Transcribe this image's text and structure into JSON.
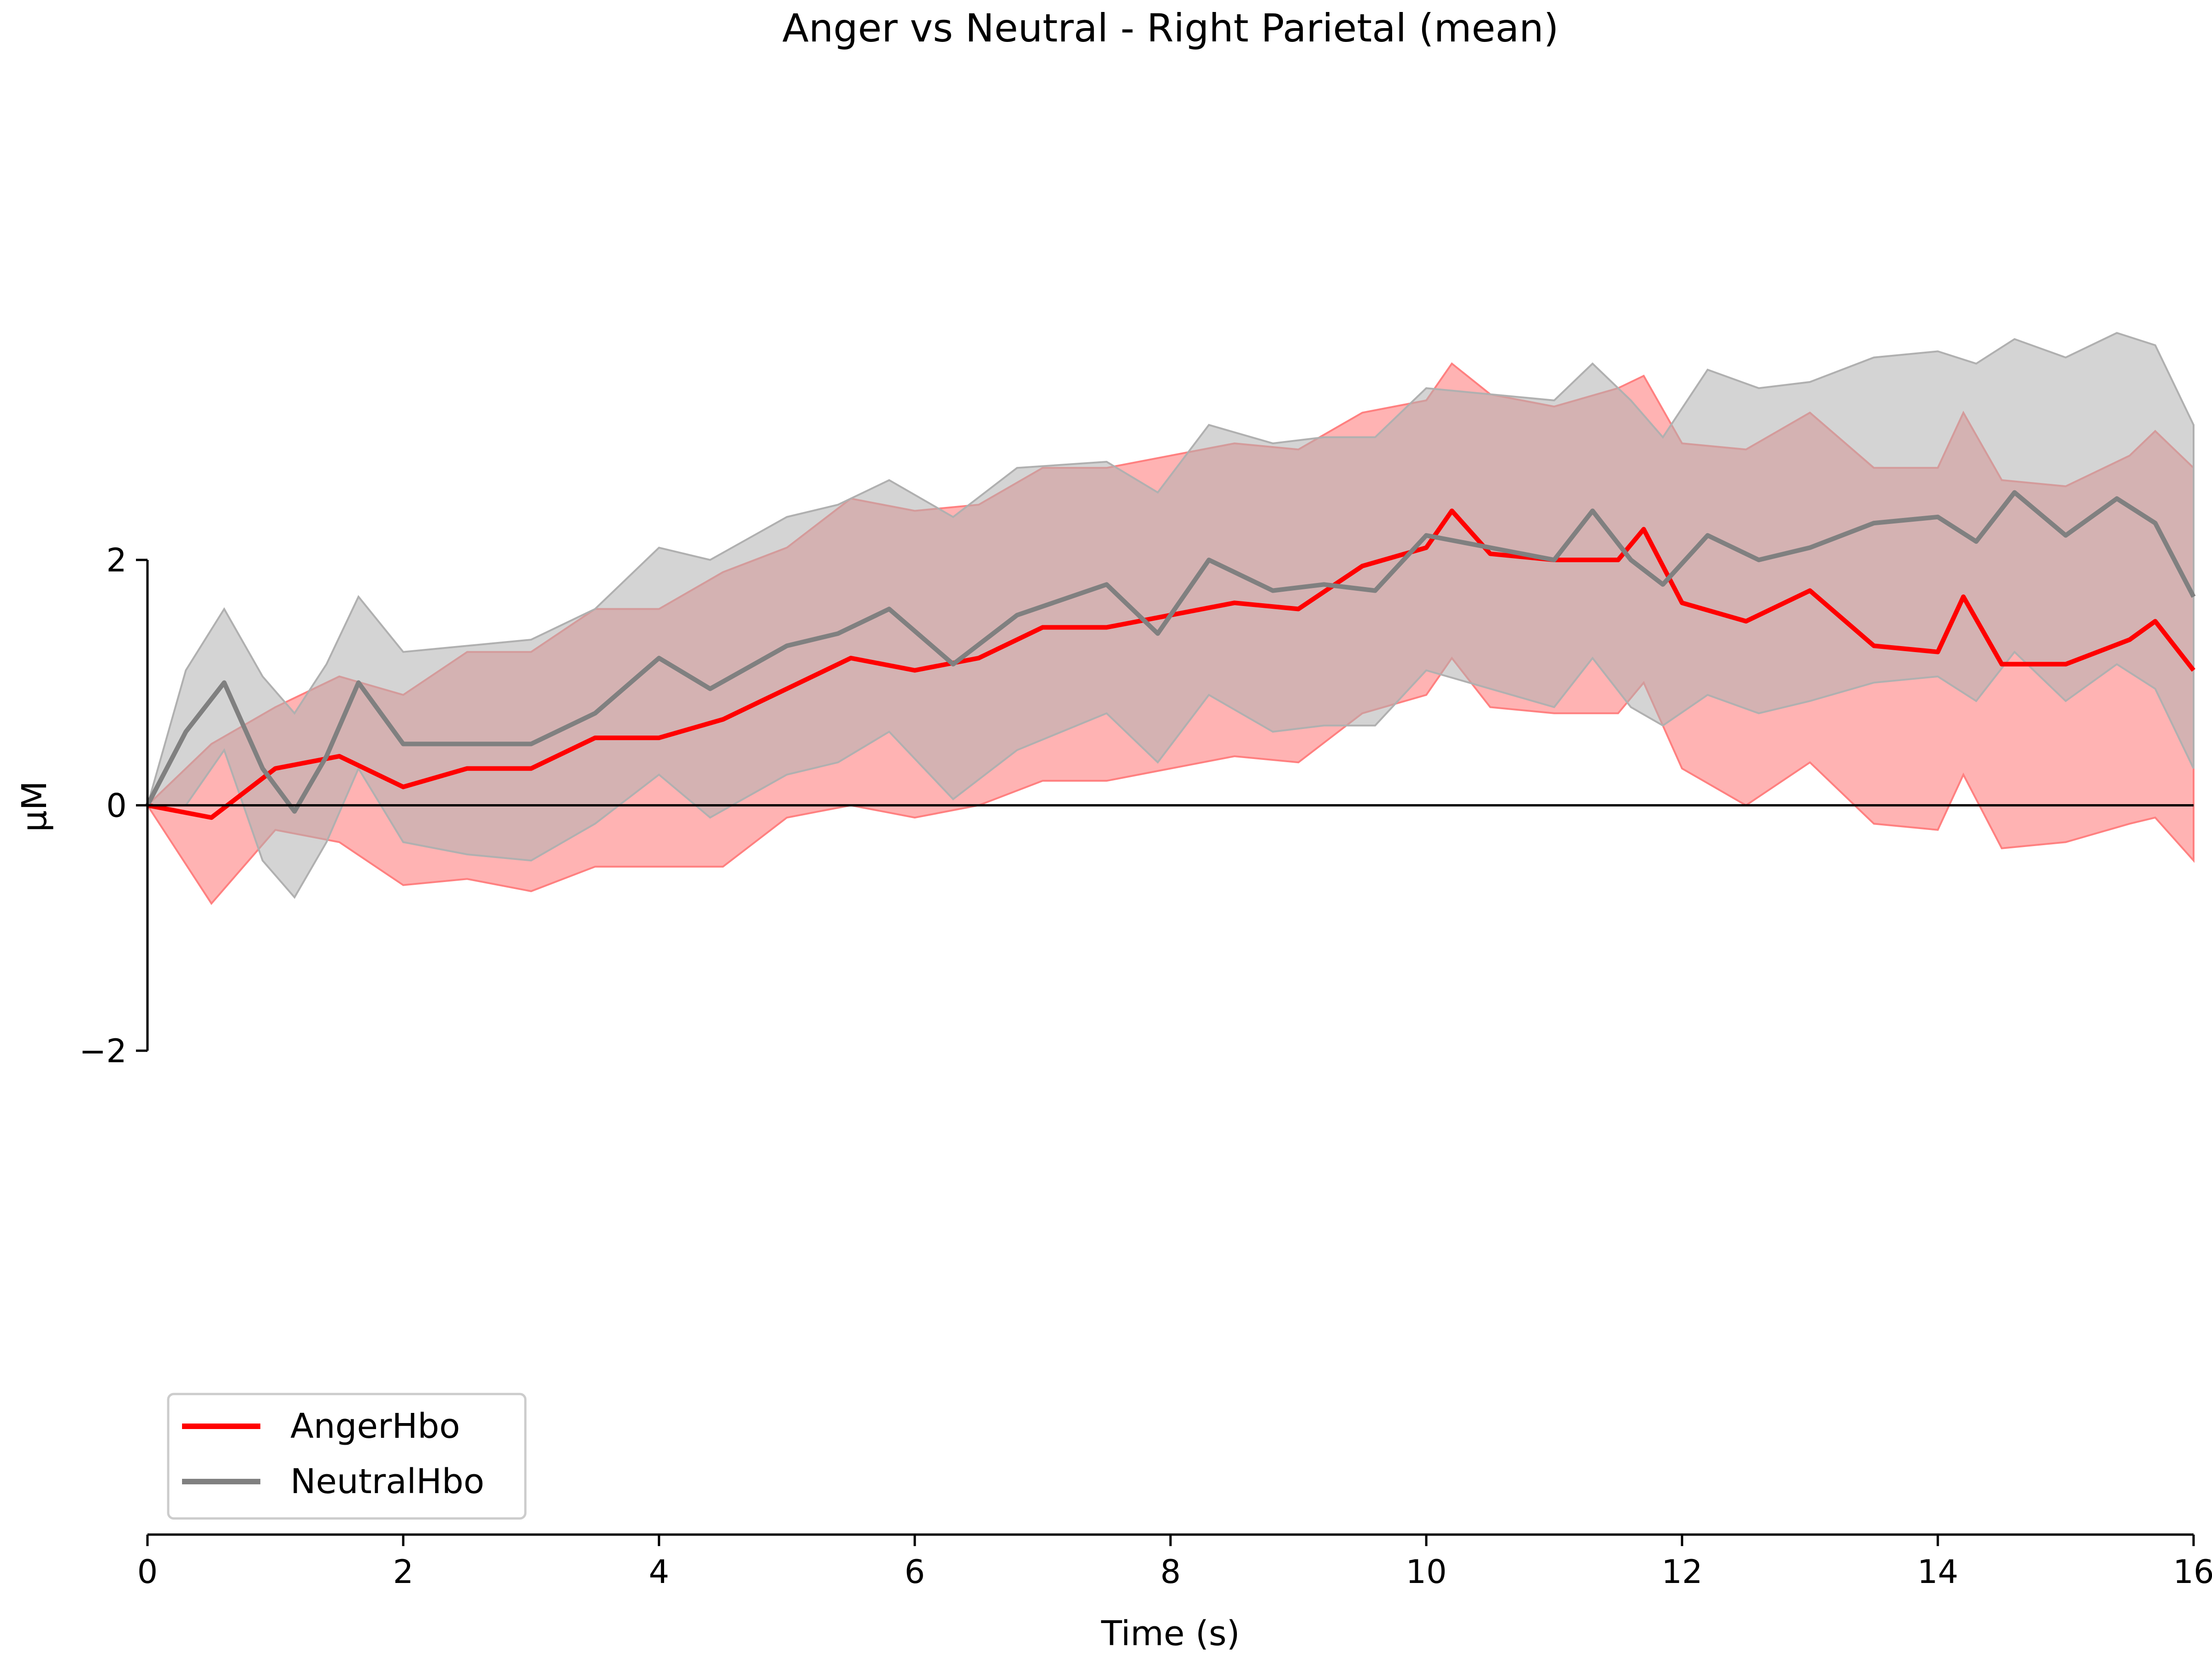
{
  "chart_data": {
    "type": "line",
    "title": "Anger vs Neutral - Right Parietal (mean)",
    "xlabel": "Time (s)",
    "ylabel": "μM",
    "xlim": [
      0,
      16
    ],
    "ylim": [
      -2,
      2
    ],
    "x_ticks": [
      "0",
      "2",
      "4",
      "6",
      "8",
      "10",
      "12",
      "14",
      "16"
    ],
    "y_ticks": [
      "−2",
      "0",
      "2"
    ],
    "x_tick_values": [
      0,
      2,
      4,
      6,
      8,
      10,
      12,
      14,
      16
    ],
    "y_tick_values": [
      -2,
      0,
      2
    ],
    "reference_line": 0,
    "grid": false,
    "legend_position": "lower-left",
    "series": [
      {
        "name": "AngerHbo",
        "color": "#ff0000",
        "band_color": "#ff8080",
        "x": [
          0,
          0.5,
          1,
          1.5,
          2,
          2.5,
          3,
          3.5,
          4,
          4.5,
          5,
          5.5,
          6,
          6.5,
          7,
          7.5,
          8,
          8.5,
          9,
          9.5,
          10,
          10.2,
          10.5,
          11,
          11.5,
          11.7,
          12,
          12.5,
          13,
          13.5,
          14,
          14.2,
          14.5,
          15,
          15.5,
          15.7,
          16
        ],
        "values": [
          0,
          -0.1,
          0.3,
          0.4,
          0.15,
          0.3,
          0.3,
          0.55,
          0.55,
          0.7,
          0.95,
          1.2,
          1.1,
          1.2,
          1.45,
          1.45,
          1.55,
          1.65,
          1.6,
          1.95,
          2.1,
          2.4,
          2.05,
          2.0,
          2.0,
          2.25,
          1.65,
          1.5,
          1.75,
          1.3,
          1.25,
          1.7,
          1.15,
          1.15,
          1.35,
          1.5,
          1.1
        ],
        "upper": [
          0,
          0.5,
          0.8,
          1.05,
          0.9,
          1.25,
          1.25,
          1.6,
          1.6,
          1.9,
          2.1,
          2.5,
          2.4,
          2.45,
          2.75,
          2.75,
          2.85,
          2.95,
          2.9,
          3.2,
          3.3,
          3.6,
          3.35,
          3.25,
          3.4,
          3.5,
          2.95,
          2.9,
          3.2,
          2.75,
          2.75,
          3.2,
          2.65,
          2.6,
          2.85,
          3.05,
          2.75
        ],
        "lower": [
          0,
          -0.8,
          -0.2,
          -0.3,
          -0.65,
          -0.6,
          -0.7,
          -0.5,
          -0.5,
          -0.5,
          -0.1,
          0.0,
          -0.1,
          0.0,
          0.2,
          0.2,
          0.3,
          0.4,
          0.35,
          0.75,
          0.9,
          1.2,
          0.8,
          0.75,
          0.75,
          1.0,
          0.3,
          0.0,
          0.35,
          -0.15,
          -0.2,
          0.25,
          -0.35,
          -0.3,
          -0.15,
          -0.1,
          -0.45
        ]
      },
      {
        "name": "NeutralHbo",
        "color": "#808080",
        "band_color": "#b0b0b0",
        "x": [
          0,
          0.3,
          0.6,
          0.9,
          1.15,
          1.4,
          1.65,
          2,
          2.5,
          3,
          3.5,
          4,
          4.4,
          5,
          5.4,
          5.8,
          6.3,
          6.8,
          7.5,
          7.9,
          8.3,
          8.8,
          9.2,
          9.6,
          10,
          10.5,
          11,
          11.3,
          11.6,
          11.85,
          12.2,
          12.6,
          13,
          13.5,
          14,
          14.3,
          14.6,
          15,
          15.4,
          15.7,
          16
        ],
        "values": [
          0,
          0.6,
          1.0,
          0.3,
          -0.05,
          0.4,
          1.0,
          0.5,
          0.5,
          0.5,
          0.75,
          1.2,
          0.95,
          1.3,
          1.4,
          1.6,
          1.15,
          1.55,
          1.8,
          1.4,
          2.0,
          1.75,
          1.8,
          1.75,
          2.2,
          2.1,
          2.0,
          2.4,
          2.0,
          1.8,
          2.2,
          2.0,
          2.1,
          2.3,
          2.35,
          2.15,
          2.55,
          2.2,
          2.5,
          2.3,
          1.7
        ],
        "upper": [
          0,
          1.1,
          1.6,
          1.05,
          0.75,
          1.15,
          1.7,
          1.25,
          1.3,
          1.35,
          1.6,
          2.1,
          2.0,
          2.35,
          2.45,
          2.65,
          2.35,
          2.75,
          2.8,
          2.55,
          3.1,
          2.95,
          3.0,
          3.0,
          3.4,
          3.35,
          3.3,
          3.6,
          3.3,
          3.0,
          3.55,
          3.4,
          3.45,
          3.65,
          3.7,
          3.6,
          3.8,
          3.65,
          3.85,
          3.75,
          3.1
        ],
        "lower": [
          0,
          0.0,
          0.45,
          -0.45,
          -0.75,
          -0.3,
          0.3,
          -0.3,
          -0.4,
          -0.45,
          -0.15,
          0.25,
          -0.1,
          0.25,
          0.35,
          0.6,
          0.05,
          0.45,
          0.75,
          0.35,
          0.9,
          0.6,
          0.65,
          0.65,
          1.1,
          0.95,
          0.8,
          1.2,
          0.8,
          0.65,
          0.9,
          0.75,
          0.85,
          1.0,
          1.05,
          0.85,
          1.25,
          0.85,
          1.15,
          0.95,
          0.3
        ]
      }
    ]
  }
}
